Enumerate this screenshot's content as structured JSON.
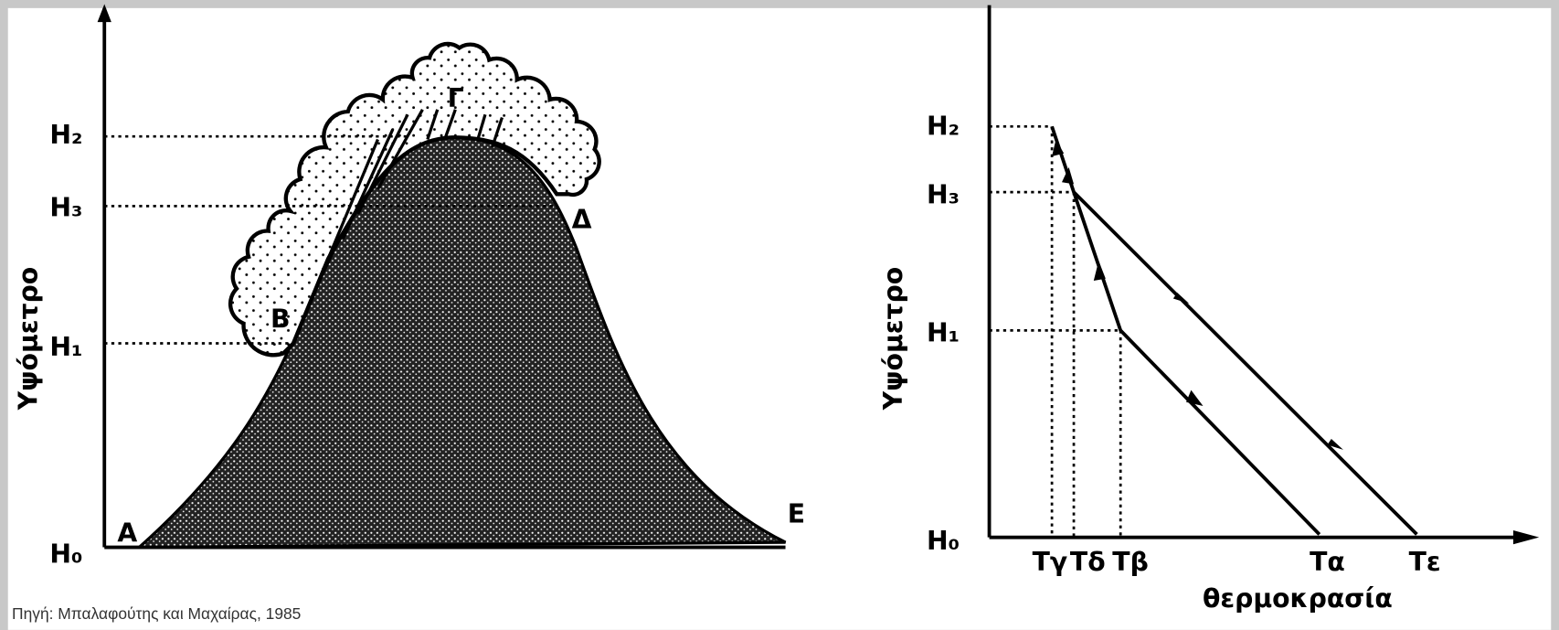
{
  "left": {
    "y_label": "Υψόμετρο",
    "levels": [
      "H₂",
      "H₃",
      "H₁",
      "H₀"
    ],
    "points": [
      "A",
      "B",
      "Γ",
      "Δ",
      "E"
    ]
  },
  "right": {
    "y_label": "Υψόμετρο",
    "levels": [
      "H₂",
      "H₃",
      "H₁",
      "H₀"
    ],
    "temperatures": [
      "Τγ",
      "Τδ",
      "Τβ",
      "Τα",
      "Τε"
    ],
    "x_label": "θερμοκρασία"
  },
  "source": "Πηγή: Μπαλαφούτης και Μαχαίρας, 1985"
}
